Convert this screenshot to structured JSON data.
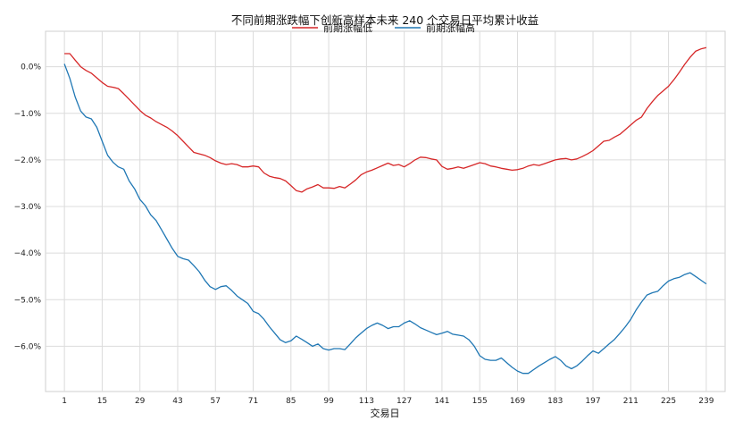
{
  "chart_data": {
    "type": "line",
    "title": "不同前期涨跌幅下创新高样本未来 240 个交易日平均累计收益",
    "xlabel": "交易日",
    "ylabel": "",
    "x_ticks": [
      "1",
      "15",
      "29",
      "43",
      "57",
      "71",
      "85",
      "99",
      "113",
      "127",
      "141",
      "155",
      "169",
      "183",
      "197",
      "211",
      "225",
      "239"
    ],
    "y_ticks": [
      "0.0%",
      "−1.0%",
      "−2.0%",
      "−3.0%",
      "−4.0%",
      "−5.0%",
      "−6.0%"
    ],
    "xlim": [
      -6,
      246
    ],
    "ylim": [
      -6.97,
      0.76
    ],
    "grid": true,
    "legend_position": "top-center",
    "series": [
      {
        "name": "前期涨幅低",
        "color": "#d62728",
        "x": [
          1,
          3,
          5,
          7,
          9,
          11,
          13,
          15,
          17,
          19,
          21,
          23,
          25,
          27,
          29,
          31,
          33,
          35,
          37,
          39,
          41,
          43,
          45,
          47,
          49,
          51,
          53,
          55,
          57,
          59,
          61,
          63,
          65,
          67,
          69,
          71,
          73,
          75,
          77,
          79,
          81,
          83,
          85,
          87,
          89,
          91,
          93,
          95,
          97,
          99,
          101,
          103,
          105,
          107,
          109,
          111,
          113,
          115,
          117,
          119,
          121,
          123,
          125,
          127,
          129,
          131,
          133,
          135,
          137,
          139,
          141,
          143,
          145,
          147,
          149,
          151,
          153,
          155,
          157,
          159,
          161,
          163,
          165,
          167,
          169,
          171,
          173,
          175,
          177,
          179,
          181,
          183,
          185,
          187,
          189,
          191,
          193,
          195,
          197,
          199,
          201,
          203,
          205,
          207,
          209,
          211,
          213,
          215,
          217,
          219,
          221,
          223,
          225,
          227,
          229,
          231,
          233,
          235,
          237,
          239
        ],
        "y": [
          0.28,
          0.28,
          0.14,
          0.0,
          -0.08,
          -0.14,
          -0.24,
          -0.34,
          -0.42,
          -0.44,
          -0.47,
          -0.58,
          -0.7,
          -0.82,
          -0.94,
          -1.04,
          -1.1,
          -1.18,
          -1.24,
          -1.3,
          -1.38,
          -1.48,
          -1.6,
          -1.72,
          -1.84,
          -1.87,
          -1.9,
          -1.95,
          -2.02,
          -2.07,
          -2.1,
          -2.08,
          -2.1,
          -2.15,
          -2.15,
          -2.13,
          -2.15,
          -2.28,
          -2.35,
          -2.38,
          -2.4,
          -2.45,
          -2.55,
          -2.66,
          -2.69,
          -2.62,
          -2.58,
          -2.53,
          -2.6,
          -2.6,
          -2.61,
          -2.57,
          -2.6,
          -2.52,
          -2.43,
          -2.32,
          -2.26,
          -2.22,
          -2.17,
          -2.12,
          -2.07,
          -2.12,
          -2.1,
          -2.15,
          -2.08,
          -2.0,
          -1.94,
          -1.95,
          -1.98,
          -2.0,
          -2.14,
          -2.2,
          -2.18,
          -2.15,
          -2.18,
          -2.14,
          -2.1,
          -2.06,
          -2.08,
          -2.13,
          -2.15,
          -2.18,
          -2.2,
          -2.22,
          -2.21,
          -2.18,
          -2.13,
          -2.1,
          -2.12,
          -2.08,
          -2.04,
          -2.0,
          -1.98,
          -1.97,
          -2.0,
          -1.98,
          -1.93,
          -1.87,
          -1.8,
          -1.7,
          -1.6,
          -1.58,
          -1.51,
          -1.45,
          -1.35,
          -1.25,
          -1.15,
          -1.08,
          -0.9,
          -0.75,
          -0.62,
          -0.52,
          -0.42,
          -0.28,
          -0.12,
          0.05,
          0.2,
          0.33,
          0.38,
          0.41
        ]
      },
      {
        "name": "前期涨幅高",
        "color": "#1f77b4",
        "x": [
          1,
          3,
          5,
          7,
          9,
          11,
          13,
          15,
          17,
          19,
          21,
          23,
          25,
          27,
          29,
          31,
          33,
          35,
          37,
          39,
          41,
          43,
          45,
          47,
          49,
          51,
          53,
          55,
          57,
          59,
          61,
          63,
          65,
          67,
          69,
          71,
          73,
          75,
          77,
          79,
          81,
          83,
          85,
          87,
          89,
          91,
          93,
          95,
          97,
          99,
          101,
          103,
          105,
          107,
          109,
          111,
          113,
          115,
          117,
          119,
          121,
          123,
          125,
          127,
          129,
          131,
          133,
          135,
          137,
          139,
          141,
          143,
          145,
          147,
          149,
          151,
          153,
          155,
          157,
          159,
          161,
          163,
          165,
          167,
          169,
          171,
          173,
          175,
          177,
          179,
          181,
          183,
          185,
          187,
          189,
          191,
          193,
          195,
          197,
          199,
          201,
          203,
          205,
          207,
          209,
          211,
          213,
          215,
          217,
          219,
          221,
          223,
          225,
          227,
          229,
          231,
          233,
          235,
          237,
          239
        ],
        "y": [
          0.06,
          -0.25,
          -0.65,
          -0.95,
          -1.08,
          -1.12,
          -1.3,
          -1.6,
          -1.9,
          -2.05,
          -2.15,
          -2.2,
          -2.45,
          -2.62,
          -2.85,
          -2.98,
          -3.18,
          -3.3,
          -3.5,
          -3.7,
          -3.9,
          -4.07,
          -4.12,
          -4.15,
          -4.27,
          -4.4,
          -4.58,
          -4.72,
          -4.78,
          -4.72,
          -4.7,
          -4.8,
          -4.92,
          -5.0,
          -5.08,
          -5.25,
          -5.3,
          -5.42,
          -5.58,
          -5.72,
          -5.86,
          -5.92,
          -5.88,
          -5.78,
          -5.85,
          -5.92,
          -6.0,
          -5.95,
          -6.05,
          -6.08,
          -6.05,
          -6.05,
          -6.07,
          -5.95,
          -5.82,
          -5.72,
          -5.62,
          -5.55,
          -5.5,
          -5.55,
          -5.62,
          -5.58,
          -5.58,
          -5.5,
          -5.45,
          -5.52,
          -5.6,
          -5.65,
          -5.7,
          -5.75,
          -5.72,
          -5.68,
          -5.74,
          -5.76,
          -5.78,
          -5.86,
          -6.0,
          -6.2,
          -6.28,
          -6.3,
          -6.3,
          -6.25,
          -6.35,
          -6.45,
          -6.53,
          -6.58,
          -6.58,
          -6.5,
          -6.42,
          -6.35,
          -6.28,
          -6.22,
          -6.3,
          -6.42,
          -6.48,
          -6.42,
          -6.32,
          -6.2,
          -6.1,
          -6.15,
          -6.05,
          -5.95,
          -5.85,
          -5.72,
          -5.58,
          -5.42,
          -5.22,
          -5.05,
          -4.9,
          -4.85,
          -4.82,
          -4.7,
          -4.6,
          -4.55,
          -4.52,
          -4.46,
          -4.42,
          -4.5,
          -4.58,
          -4.66
        ]
      }
    ]
  }
}
